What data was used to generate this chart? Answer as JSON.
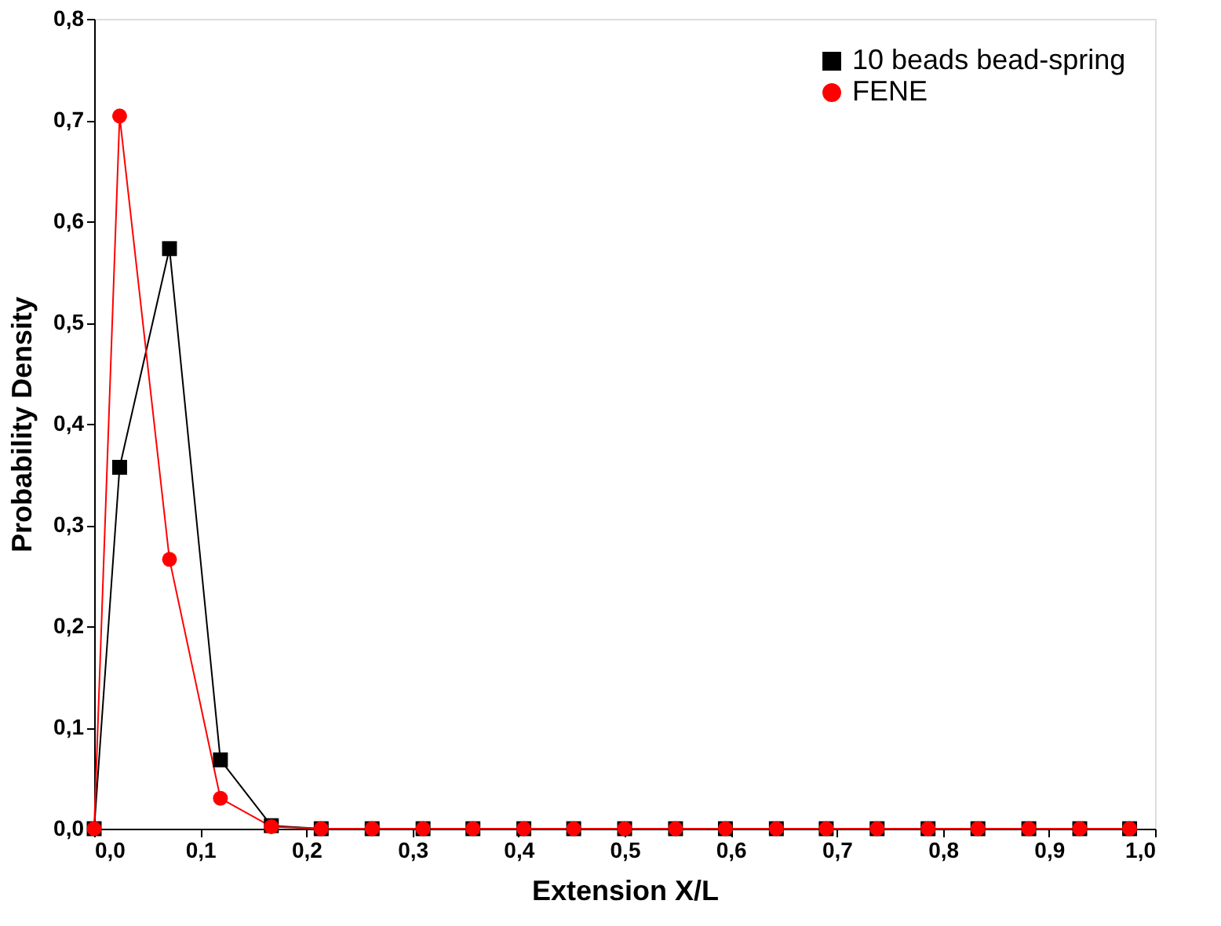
{
  "chart_data": {
    "type": "line",
    "xlabel": "Extension X/L",
    "ylabel": "Probability Density",
    "x": [
      0,
      0.024,
      0.071,
      0.119,
      0.167,
      0.214,
      0.262,
      0.31,
      0.357,
      0.405,
      0.452,
      0.5,
      0.548,
      0.595,
      0.643,
      0.69,
      0.738,
      0.786,
      0.833,
      0.881,
      0.929,
      0.976
    ],
    "series": [
      {
        "name": "10 beads bead-spring",
        "color": "#000000",
        "marker": "square",
        "values": [
          0,
          0.357,
          0.573,
          0.068,
          0.003,
          0,
          0,
          0,
          0,
          0,
          0,
          0,
          0,
          0,
          0,
          0,
          0,
          0,
          0,
          0,
          0,
          0
        ]
      },
      {
        "name": "FENE",
        "color": "#ff0000",
        "marker": "circle",
        "values": [
          0,
          0.704,
          0.266,
          0.03,
          0.002,
          0,
          0,
          0,
          0,
          0,
          0,
          0,
          0,
          0,
          0,
          0,
          0,
          0,
          0,
          0,
          0,
          0
        ]
      }
    ],
    "xlim": [
      0,
      1
    ],
    "xticks": [
      {
        "value": 0,
        "label": "0,0"
      },
      {
        "value": 0.1,
        "label": "0,1"
      },
      {
        "value": 0.2,
        "label": "0,2"
      },
      {
        "value": 0.3,
        "label": "0,3"
      },
      {
        "value": 0.4,
        "label": "0,4"
      },
      {
        "value": 0.5,
        "label": "0,5"
      },
      {
        "value": 0.6,
        "label": "0,6"
      },
      {
        "value": 0.7,
        "label": "0,7"
      },
      {
        "value": 0.8,
        "label": "0,8"
      },
      {
        "value": 0.9,
        "label": "0,9"
      },
      {
        "value": 1,
        "label": "1,0"
      }
    ],
    "ylim": [
      0,
      0.8
    ],
    "yticks": [
      {
        "value": 0,
        "label": "0,0"
      },
      {
        "value": 0.1,
        "label": "0,1"
      },
      {
        "value": 0.2,
        "label": "0,2"
      },
      {
        "value": 0.3,
        "label": "0,3"
      },
      {
        "value": 0.4,
        "label": "0,4"
      },
      {
        "value": 0.5,
        "label": "0,5"
      },
      {
        "value": 0.6,
        "label": "0,6"
      },
      {
        "value": 0.7,
        "label": "0,7"
      },
      {
        "value": 0.8,
        "label": "0,8"
      }
    ],
    "grid": false,
    "legend": "top right",
    "line_style": "solid"
  }
}
